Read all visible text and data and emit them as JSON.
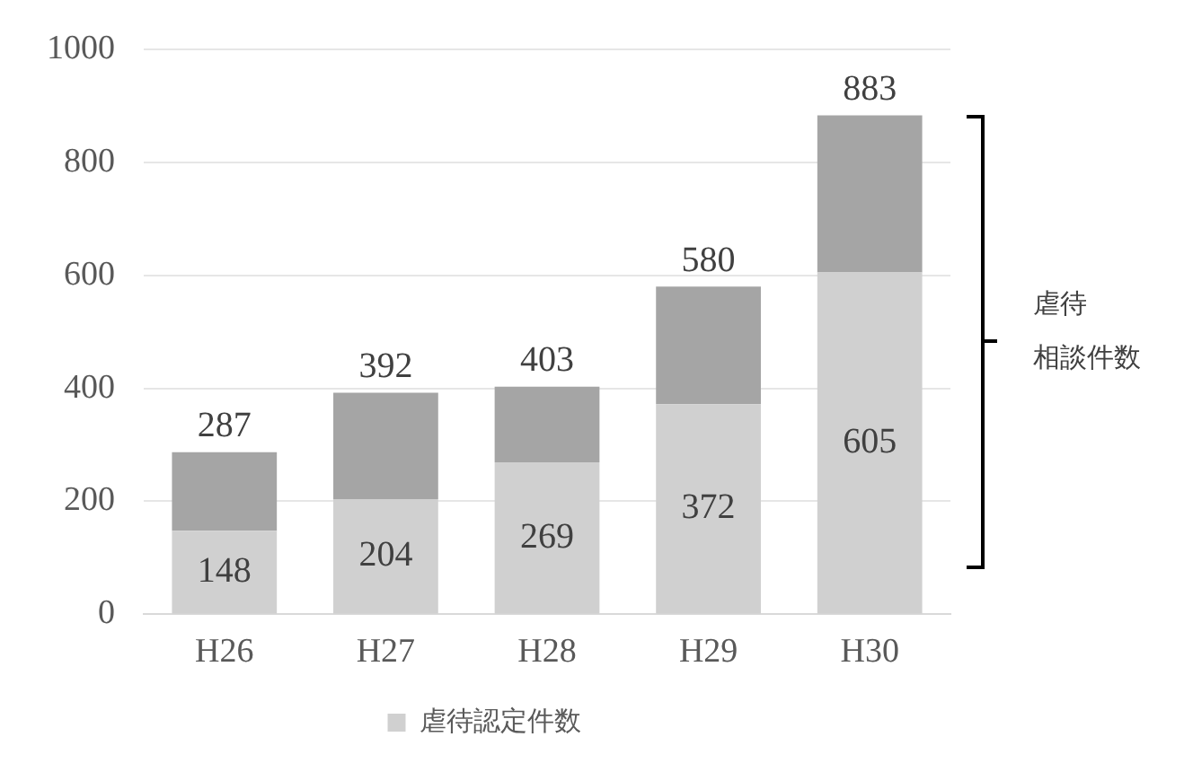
{
  "chart_data": {
    "type": "bar",
    "stacked": true,
    "categories": [
      "H26",
      "H27",
      "H28",
      "H29",
      "H30"
    ],
    "series": [
      {
        "name": "虐待認定件数",
        "color": "#d0d0d0",
        "values": [
          148,
          204,
          269,
          372,
          605
        ],
        "value_labels": [
          "148",
          "204",
          "269",
          "372",
          "605"
        ]
      },
      {
        "color": "#a5a5a5",
        "values": [
          139,
          188,
          134,
          208,
          278
        ]
      }
    ],
    "totals": [
      "287",
      "392",
      "403",
      "580",
      "883"
    ],
    "ylim": [
      0,
      1000
    ],
    "yticks": [
      0,
      200,
      400,
      600,
      800,
      1000
    ],
    "grid": "y",
    "legend": "bottom",
    "annotations": [
      "虐待相談件数"
    ]
  }
}
